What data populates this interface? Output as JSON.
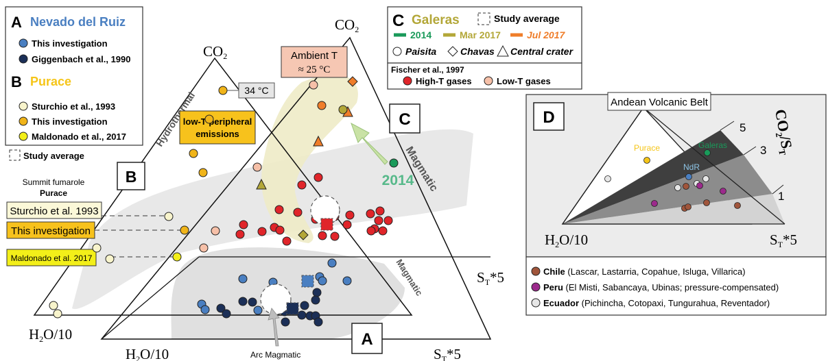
{
  "legend_left": {
    "panel_a_letter": "A",
    "panel_a_title": "Nevado del Ruiz",
    "a_items": [
      "This investigation",
      "Giggenbach et al., 1990"
    ],
    "panel_b_letter": "B",
    "panel_b_title": "Purace",
    "b_items": [
      "Sturchio et al., 1993",
      "This investigation",
      "Maldonado et al., 2017"
    ],
    "study_average": "Study average"
  },
  "legend_c": {
    "letter": "C",
    "title": "Galeras",
    "study_average": "Study average",
    "years": [
      "2014",
      "Mar 2017",
      "Jul 2017"
    ],
    "shapes": [
      "Paisita",
      "Chavas",
      "Central",
      "crater"
    ],
    "ref": "Fischer et al., 1997",
    "high_t": "High-T gases",
    "low_t": "Low-T gases"
  },
  "triangle_b": {
    "apex": "CO",
    "apex_sub": "2",
    "side": "Hydrothermal",
    "temp": "34 °C",
    "low_t_line1": "low-T peripheral",
    "low_t_line2": "emissions",
    "summit_line1": "Summit fumarole",
    "summit_line2": "Purace",
    "box_letter": "B",
    "src1": "Sturchio et al. 1993",
    "src2": "This investigation",
    "src3": "Maldonado et al. 2017",
    "bottom_left": "H",
    "bottom_left_sub": "2",
    "bottom_left_rest": "O/10"
  },
  "triangle_main": {
    "apex": "CO",
    "apex_sub": "2",
    "ambient_line1": "Ambient T",
    "ambient_line2": "≈ 25 °C",
    "box_c": "C",
    "magmatic_upper": "Magmatic",
    "year_2014": "2014",
    "right_label": "S",
    "right_sub": "T",
    "right_rest": "*5",
    "magmatic_lower": "Magmatic",
    "box_a": "A",
    "bottom_left": "H",
    "bottom_left_sub": "2",
    "bottom_left_rest": "O/10",
    "bottom_right": "S",
    "bottom_right_sub": "T",
    "bottom_right_rest": "*5",
    "arc_label": "Arc Magmatic"
  },
  "panel_d": {
    "letter": "D",
    "title": "Andean Volcanic Belt",
    "ratio_label": "CO",
    "ratio_sub": "2",
    "ratio_mid": "/S",
    "ratio_sub2": "T",
    "ratio_5": "5",
    "ratio_3": "3",
    "ratio_1": "1",
    "purace": "Purace",
    "galeras": "Galeras",
    "ndr": "NdR",
    "bottom_left": "H",
    "bottom_left_sub": "2",
    "bottom_left_rest": "O/10",
    "bottom_right": "S",
    "bottom_right_sub": "T",
    "bottom_right_rest": "*5",
    "chile_name": "Chile",
    "chile_text": " (",
    "chile_list": "Lascar, Lastarria, Copahue, Isluga, Villarica)",
    "peru_name": "Peru",
    "peru_list": " (El Misti, Sabancaya, Ubinas; pressure-compensated)",
    "ecuador_name": "Ecuador",
    "ecuador_list": " (Pichincha, Cotopaxi, Tungurahua, Reventador)"
  },
  "colors": {
    "ruiz_blue": "#4a7fc1",
    "ruiz_dark": "#1b2f57",
    "purace_yellow": "#f5c518",
    "purace_light": "#f8f4cc",
    "purace_gold": "#f0b419",
    "maldonado_yellow": "#f3ef19",
    "high_t_red": "#e0252a",
    "low_t_pink": "#f6c0a8",
    "galeras_green": "#1a9a5a",
    "olive": "#b3a738",
    "orange": "#ef7d2a",
    "chile_brown": "#a0553b",
    "peru_purple": "#9c2a8c",
    "ecuador_grey": "#e6e6e6"
  }
}
